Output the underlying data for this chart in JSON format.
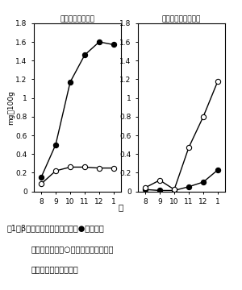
{
  "months_labels": [
    "8",
    "9",
    "10",
    "11",
    "12",
    "1"
  ],
  "unshu_black": [
    0.15,
    0.5,
    1.17,
    1.46,
    1.6,
    1.57
  ],
  "unshu_white": [
    0.08,
    0.22,
    0.26,
    0.26,
    0.25,
    0.25
  ],
  "valencia_black": [
    0.02,
    0.01,
    0.01,
    0.05,
    0.1,
    0.23
  ],
  "valencia_white": [
    0.04,
    0.12,
    0.02,
    0.47,
    0.8,
    1.18
  ],
  "ylim": [
    0,
    1.8
  ],
  "yticks": [
    0,
    0.2,
    0.4,
    0.6,
    0.8,
    1.0,
    1.2,
    1.4,
    1.6,
    1.8
  ],
  "ytick_labels": [
    "0",
    "0.2",
    "0.4",
    "0.6",
    "0.8",
    "1",
    "1.2",
    "1.4",
    "1.6",
    "1.8"
  ],
  "title_unshu": "ウンシュウミカン",
  "title_valencia": "バレンシアオレンジ",
  "ylabel": "mg／100g",
  "xlabel": "月",
  "caption_line1": "図1　βークリプトキサンチン（●）とビオ",
  "caption_line2": "ラキサンチン（○）含量の季節的変化",
  "caption_line3": "（砂じょうでの結果）"
}
